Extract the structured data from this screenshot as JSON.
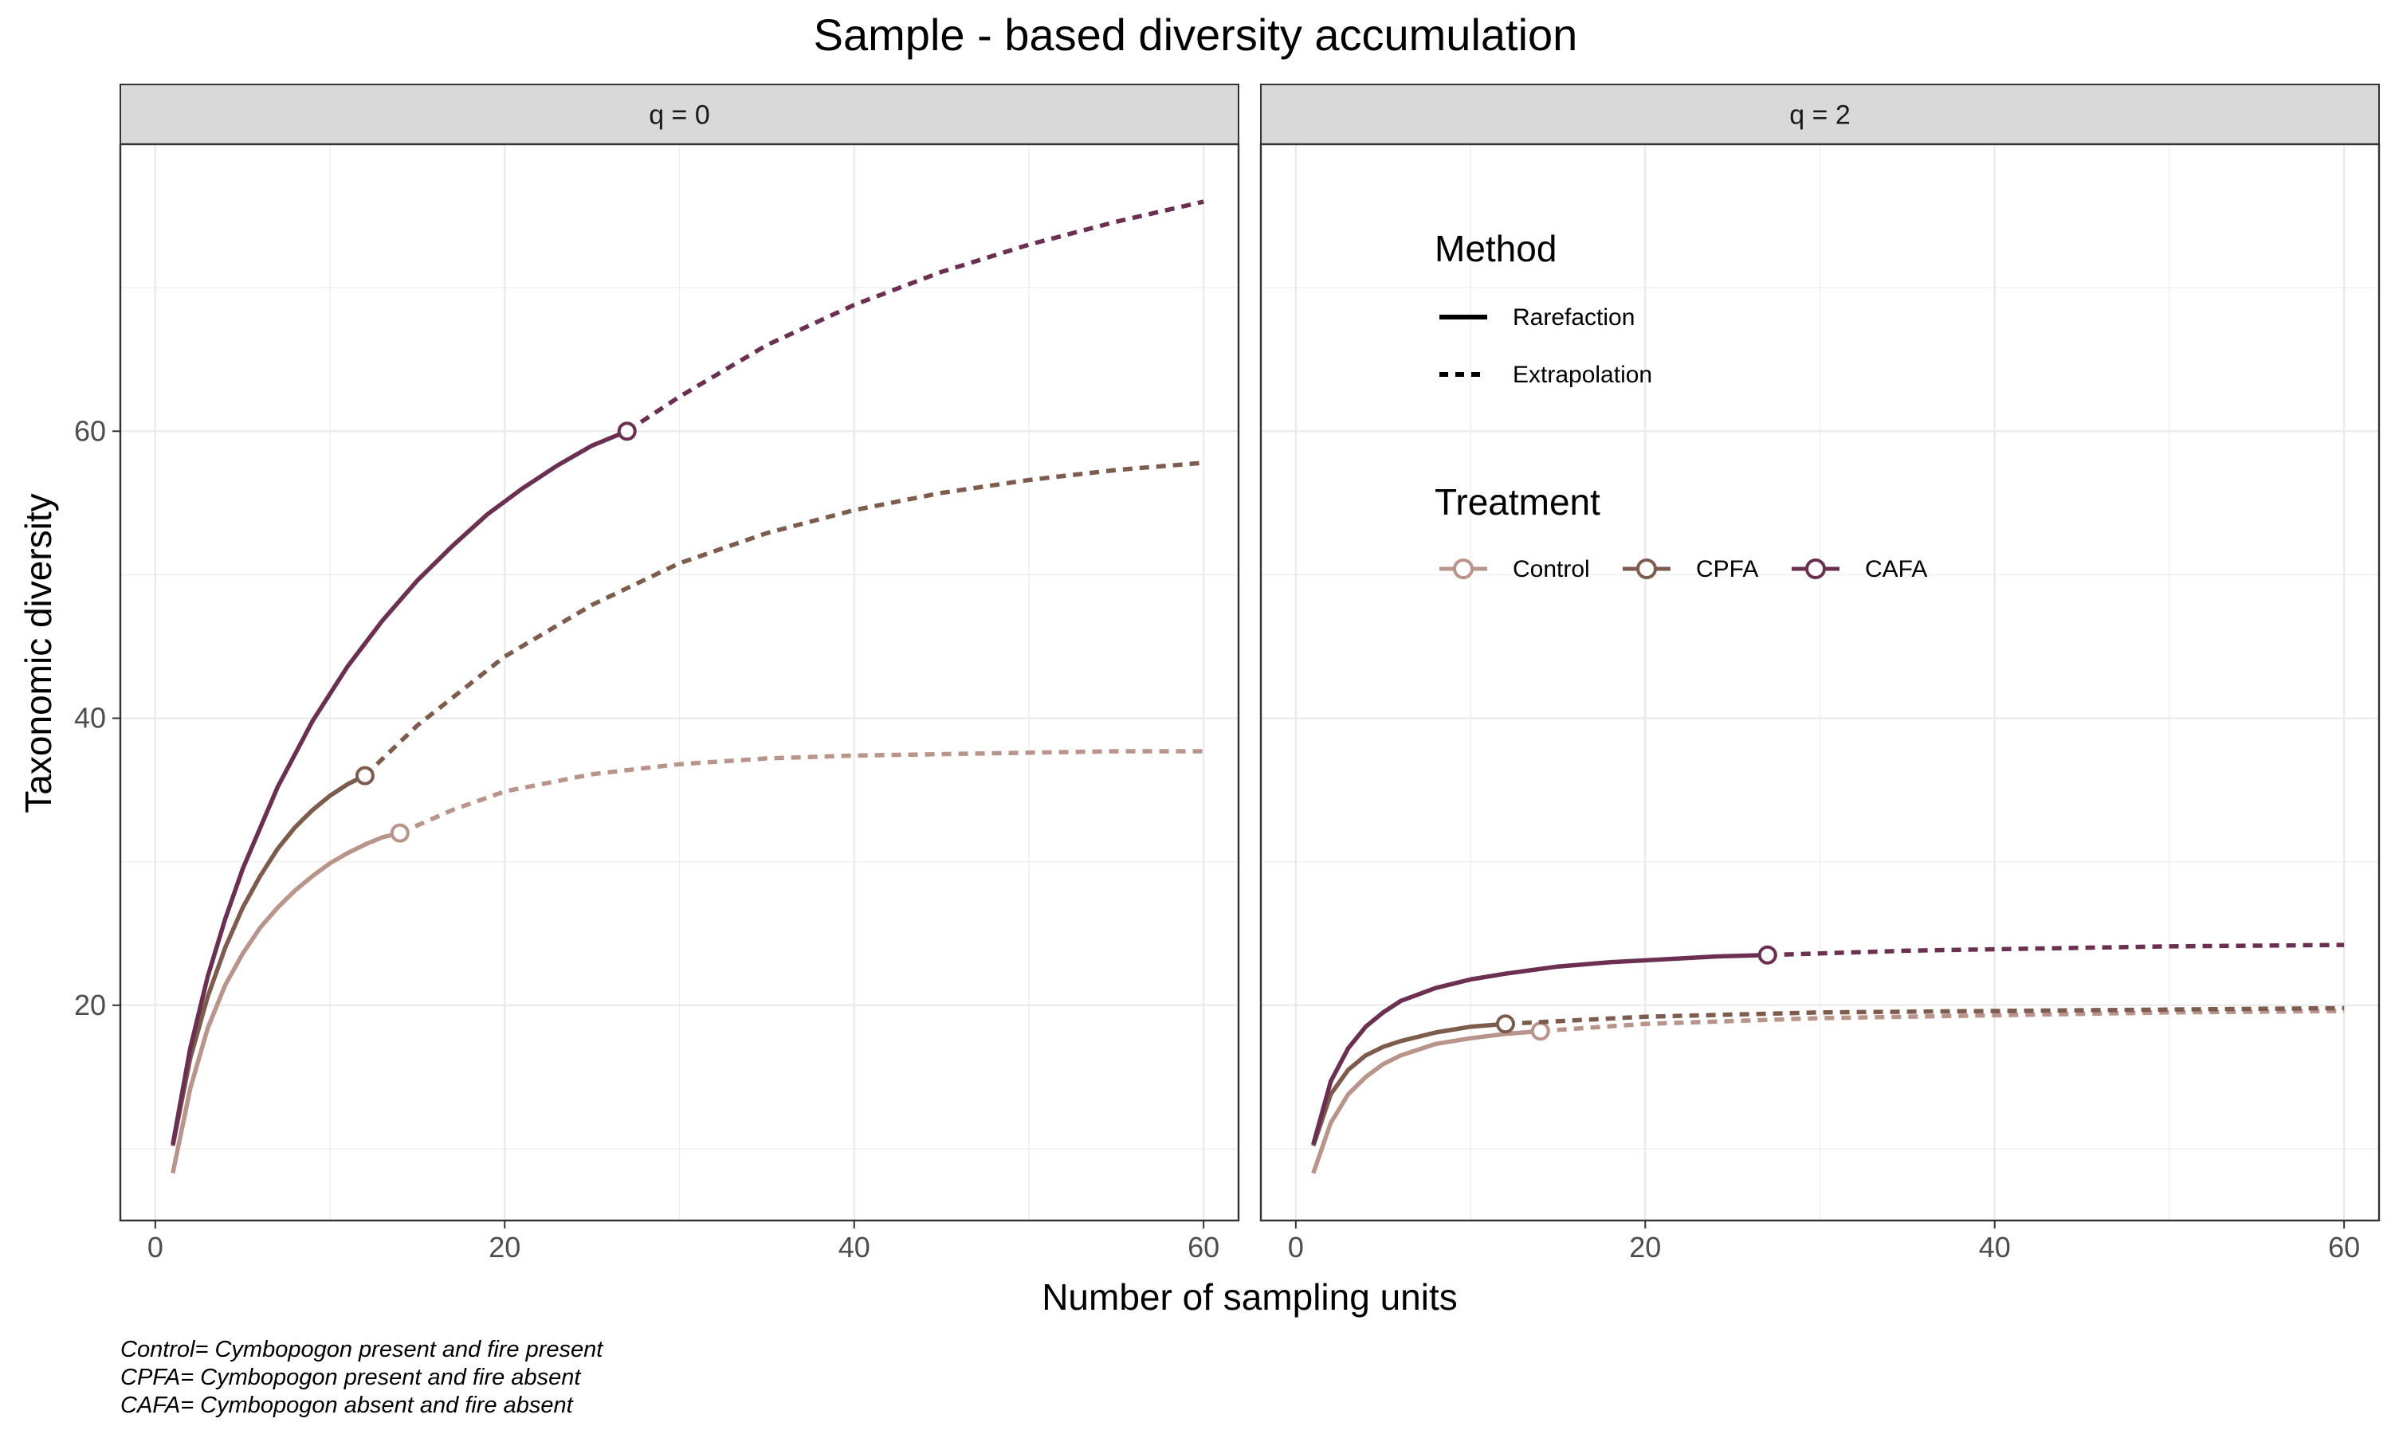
{
  "chart_data": {
    "type": "line",
    "title": "Sample - based diversity accumulation",
    "xlabel": "Number of sampling units",
    "ylabel": "Taxonomic diversity",
    "xlim": [
      -2,
      62
    ],
    "ylim": [
      5,
      80
    ],
    "x_ticks": [
      0,
      20,
      40,
      60
    ],
    "y_ticks": [
      20,
      40,
      60
    ],
    "grid": true,
    "colors": {
      "Control": "#b8948a",
      "CPFA": "#7d5c4e",
      "CAFA": "#6b2f52"
    },
    "legend": {
      "placement": "inside right panel, top",
      "method_title": "Method",
      "method_items": [
        "Rarefaction",
        "Extrapolation"
      ],
      "treatment_title": "Treatment",
      "treatment_items": [
        "Control",
        "CPFA",
        "CAFA"
      ]
    },
    "panels": [
      {
        "strip": "q = 0",
        "series": [
          {
            "name": "Control",
            "observed": [
              14,
              32
            ],
            "rarefaction": [
              [
                1,
                8.3
              ],
              [
                2,
                14.2
              ],
              [
                3,
                18.4
              ],
              [
                4,
                21.4
              ],
              [
                5,
                23.6
              ],
              [
                6,
                25.4
              ],
              [
                7,
                26.8
              ],
              [
                8,
                28.0
              ],
              [
                9,
                29.0
              ],
              [
                10,
                29.9
              ],
              [
                11,
                30.6
              ],
              [
                12,
                31.2
              ],
              [
                13,
                31.7
              ],
              [
                14,
                32.0
              ]
            ],
            "extrapolation": [
              [
                14,
                32.0
              ],
              [
                17,
                33.6
              ],
              [
                20,
                34.9
              ],
              [
                25,
                36.1
              ],
              [
                30,
                36.8
              ],
              [
                35,
                37.2
              ],
              [
                40,
                37.4
              ],
              [
                45,
                37.5
              ],
              [
                50,
                37.6
              ],
              [
                55,
                37.7
              ],
              [
                60,
                37.7
              ]
            ]
          },
          {
            "name": "CPFA",
            "observed": [
              12,
              36
            ],
            "rarefaction": [
              [
                1,
                10.2
              ],
              [
                2,
                16.3
              ],
              [
                3,
                20.6
              ],
              [
                4,
                24.0
              ],
              [
                5,
                26.8
              ],
              [
                6,
                29.0
              ],
              [
                7,
                30.9
              ],
              [
                8,
                32.4
              ],
              [
                9,
                33.6
              ],
              [
                10,
                34.6
              ],
              [
                11,
                35.4
              ],
              [
                12,
                36.0
              ]
            ],
            "extrapolation": [
              [
                12,
                36.0
              ],
              [
                15,
                39.5
              ],
              [
                20,
                44.3
              ],
              [
                25,
                47.9
              ],
              [
                30,
                50.8
              ],
              [
                35,
                52.9
              ],
              [
                40,
                54.5
              ],
              [
                45,
                55.7
              ],
              [
                50,
                56.6
              ],
              [
                55,
                57.3
              ],
              [
                60,
                57.8
              ]
            ]
          },
          {
            "name": "CAFA",
            "observed": [
              27,
              60
            ],
            "rarefaction": [
              [
                1,
                10.3
              ],
              [
                2,
                17.0
              ],
              [
                3,
                22.0
              ],
              [
                4,
                26.0
              ],
              [
                5,
                29.5
              ],
              [
                7,
                35.2
              ],
              [
                9,
                39.8
              ],
              [
                11,
                43.6
              ],
              [
                13,
                46.8
              ],
              [
                15,
                49.6
              ],
              [
                17,
                52.0
              ],
              [
                19,
                54.2
              ],
              [
                21,
                56.0
              ],
              [
                23,
                57.6
              ],
              [
                25,
                59.0
              ],
              [
                27,
                60.0
              ]
            ],
            "extrapolation": [
              [
                27,
                60.0
              ],
              [
                30,
                62.4
              ],
              [
                35,
                66.0
              ],
              [
                40,
                68.8
              ],
              [
                45,
                71.1
              ],
              [
                50,
                73.0
              ],
              [
                55,
                74.6
              ],
              [
                60,
                76.0
              ]
            ]
          }
        ]
      },
      {
        "strip": "q = 2",
        "series": [
          {
            "name": "Control",
            "observed": [
              14,
              18.2
            ],
            "rarefaction": [
              [
                1,
                8.3
              ],
              [
                2,
                11.8
              ],
              [
                3,
                13.8
              ],
              [
                4,
                15.0
              ],
              [
                5,
                15.9
              ],
              [
                6,
                16.5
              ],
              [
                7,
                16.9
              ],
              [
                8,
                17.3
              ],
              [
                9,
                17.5
              ],
              [
                10,
                17.7
              ],
              [
                12,
                18.0
              ],
              [
                14,
                18.2
              ]
            ],
            "extrapolation": [
              [
                14,
                18.2
              ],
              [
                20,
                18.7
              ],
              [
                30,
                19.1
              ],
              [
                40,
                19.3
              ],
              [
                50,
                19.5
              ],
              [
                60,
                19.6
              ]
            ]
          },
          {
            "name": "CPFA",
            "observed": [
              12,
              18.7
            ],
            "rarefaction": [
              [
                1,
                10.2
              ],
              [
                2,
                13.8
              ],
              [
                3,
                15.5
              ],
              [
                4,
                16.5
              ],
              [
                5,
                17.1
              ],
              [
                6,
                17.5
              ],
              [
                7,
                17.8
              ],
              [
                8,
                18.1
              ],
              [
                9,
                18.3
              ],
              [
                10,
                18.5
              ],
              [
                12,
                18.7
              ]
            ],
            "extrapolation": [
              [
                12,
                18.7
              ],
              [
                20,
                19.2
              ],
              [
                30,
                19.5
              ],
              [
                40,
                19.6
              ],
              [
                50,
                19.7
              ],
              [
                60,
                19.8
              ]
            ]
          },
          {
            "name": "CAFA",
            "observed": [
              27,
              23.5
            ],
            "rarefaction": [
              [
                1,
                10.3
              ],
              [
                2,
                14.7
              ],
              [
                3,
                17.0
              ],
              [
                4,
                18.5
              ],
              [
                5,
                19.5
              ],
              [
                6,
                20.3
              ],
              [
                8,
                21.2
              ],
              [
                10,
                21.8
              ],
              [
                12,
                22.2
              ],
              [
                15,
                22.7
              ],
              [
                18,
                23.0
              ],
              [
                21,
                23.2
              ],
              [
                24,
                23.4
              ],
              [
                27,
                23.5
              ]
            ],
            "extrapolation": [
              [
                27,
                23.5
              ],
              [
                35,
                23.8
              ],
              [
                40,
                23.9
              ],
              [
                50,
                24.1
              ],
              [
                60,
                24.2
              ]
            ]
          }
        ]
      }
    ],
    "caption_lines": [
      "Control= Cymbopogon present and fire present",
      "CPFA= Cymbopogon present and fire absent",
      "CAFA= Cymbopogon absent and fire absent"
    ]
  }
}
